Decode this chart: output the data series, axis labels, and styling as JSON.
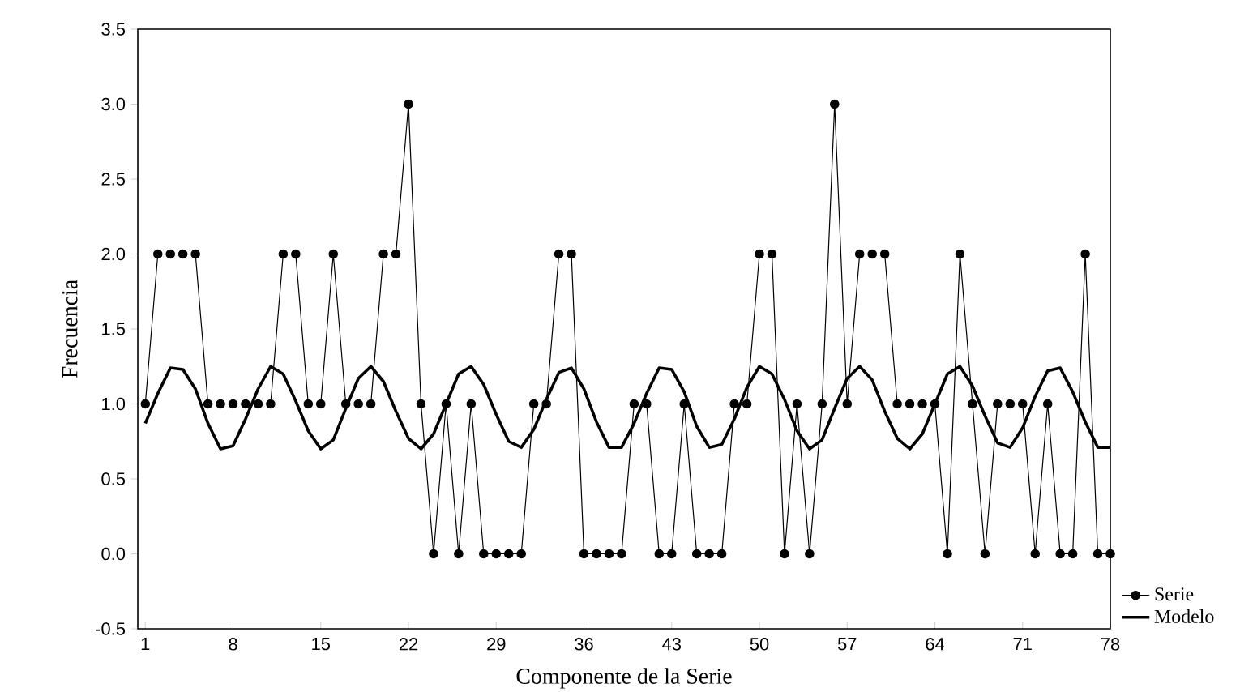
{
  "chart_data": {
    "type": "line",
    "xlabel": "Componente de la Serie",
    "ylabel": "Frecuencia",
    "x": [
      1,
      2,
      3,
      4,
      5,
      6,
      7,
      8,
      9,
      10,
      11,
      12,
      13,
      14,
      15,
      16,
      17,
      18,
      19,
      20,
      21,
      22,
      23,
      24,
      25,
      26,
      27,
      28,
      29,
      30,
      31,
      32,
      33,
      34,
      35,
      36,
      37,
      38,
      39,
      40,
      41,
      42,
      43,
      44,
      45,
      46,
      47,
      48,
      49,
      50,
      51,
      52,
      53,
      54,
      55,
      56,
      57,
      58,
      59,
      60,
      61,
      62,
      63,
      64,
      65,
      66,
      67,
      68,
      69,
      70,
      71,
      72,
      73,
      74,
      75,
      76,
      77,
      78
    ],
    "series": [
      {
        "name": "Serie",
        "color": "#000000",
        "marker": "circle",
        "values": [
          1,
          2,
          2,
          2,
          2,
          1,
          1,
          1,
          1,
          1,
          1,
          2,
          2,
          1,
          1,
          2,
          1,
          1,
          1,
          2,
          2,
          3,
          1,
          0,
          1,
          0,
          1,
          0,
          0,
          0,
          0,
          1,
          1,
          2,
          2,
          0,
          0,
          0,
          0,
          1,
          1,
          0,
          0,
          1,
          0,
          0,
          0,
          1,
          1,
          2,
          2,
          0,
          1,
          0,
          1,
          3,
          1,
          2,
          2,
          2,
          1,
          1,
          1,
          1,
          0,
          2,
          1,
          0,
          1,
          1,
          1,
          0,
          1,
          0,
          0,
          2,
          0,
          0
        ]
      },
      {
        "name": "Modelo",
        "color": "#000000",
        "marker": "none",
        "values": [
          0.87,
          1.07,
          1.24,
          1.23,
          1.1,
          0.87,
          0.7,
          0.72,
          0.9,
          1.1,
          1.25,
          1.2,
          1.02,
          0.82,
          0.7,
          0.76,
          0.97,
          1.17,
          1.25,
          1.15,
          0.95,
          0.77,
          0.7,
          0.8,
          1.0,
          1.2,
          1.25,
          1.13,
          0.93,
          0.75,
          0.71,
          0.83,
          1.03,
          1.21,
          1.24,
          1.1,
          0.88,
          0.71,
          0.71,
          0.87,
          1.07,
          1.24,
          1.23,
          1.08,
          0.85,
          0.71,
          0.73,
          0.9,
          1.11,
          1.25,
          1.2,
          1.03,
          0.82,
          0.7,
          0.76,
          0.97,
          1.17,
          1.25,
          1.16,
          0.95,
          0.77,
          0.7,
          0.8,
          1.0,
          1.2,
          1.25,
          1.12,
          0.92,
          0.74,
          0.71,
          0.84,
          1.05,
          1.22,
          1.24,
          1.08,
          0.88,
          0.71,
          0.71
        ]
      }
    ],
    "xlim": [
      0.4,
      78
    ],
    "xticks": [
      1,
      8,
      15,
      22,
      29,
      36,
      43,
      50,
      57,
      64,
      71,
      78
    ],
    "ylim": [
      -0.5,
      3.5
    ],
    "yticks": [
      {
        "value": -0.5,
        "label": "-0.5"
      },
      {
        "value": 0,
        "label": "0.0"
      },
      {
        "value": 0.5,
        "label": "0.5"
      },
      {
        "value": 1,
        "label": "1.0"
      },
      {
        "value": 1.5,
        "label": "1.5"
      },
      {
        "value": 2,
        "label": "2.0"
      },
      {
        "value": 2.5,
        "label": "2.5"
      },
      {
        "value": 3,
        "label": "3.0"
      },
      {
        "value": 3.5,
        "label": "3.5"
      }
    ],
    "legend": "bottom right",
    "grid": false,
    "line_style": "solid"
  }
}
